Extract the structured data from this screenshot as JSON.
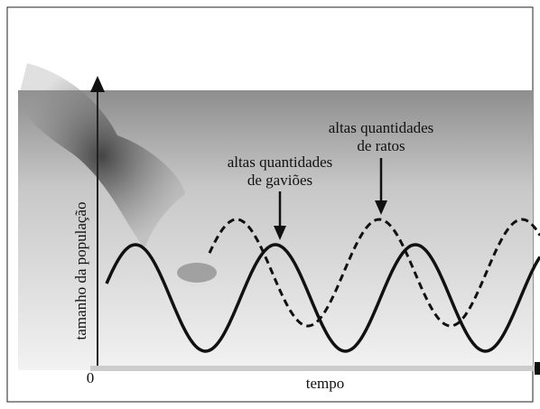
{
  "axes": {
    "y_label": "tamanho da população",
    "x_label": "tempo",
    "origin": "0"
  },
  "annotations": [
    {
      "lines": [
        "altas quantidades",
        "de ratos"
      ]
    },
    {
      "lines": [
        "altas quantidades",
        "de gaviões"
      ]
    }
  ]
}
